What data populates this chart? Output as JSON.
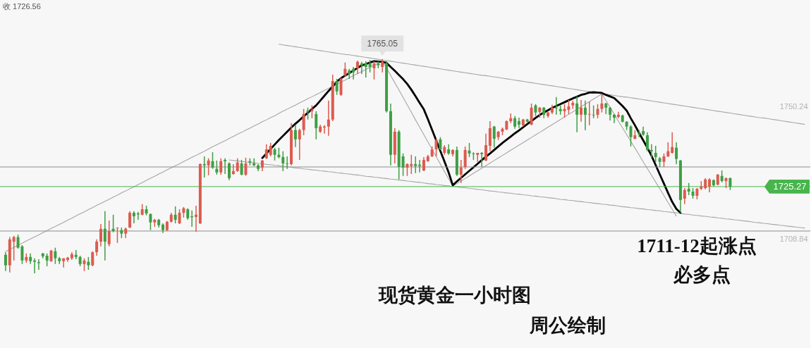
{
  "chart_data": {
    "type": "candlestick",
    "categories": [
      null,
      null,
      null,
      null,
      null,
      null,
      null,
      null,
      null,
      null,
      null,
      null,
      null,
      null,
      null,
      null,
      null,
      null,
      null,
      null,
      null,
      null,
      null,
      null,
      null,
      null,
      null,
      null,
      null,
      null,
      null,
      null,
      null,
      null,
      null,
      null,
      null,
      null,
      null,
      null,
      null,
      null,
      null,
      null,
      null,
      null,
      null,
      null,
      null,
      null,
      null,
      null,
      null,
      null,
      null,
      null,
      null,
      null,
      null,
      null,
      null,
      null,
      null,
      null,
      null,
      null,
      null,
      null,
      null,
      null,
      null,
      null,
      null,
      null,
      null,
      null,
      null,
      null,
      null,
      null,
      null,
      null,
      null,
      null,
      null,
      null,
      null,
      null,
      null,
      null,
      null,
      null,
      null,
      null,
      null,
      null,
      null,
      null,
      null,
      null,
      null,
      null,
      null,
      null,
      null,
      null,
      null,
      null,
      null,
      null,
      null,
      null,
      null,
      null,
      null,
      null,
      null,
      null,
      null,
      null,
      null,
      null,
      null,
      null,
      null,
      null,
      null,
      null,
      null,
      null,
      null,
      null,
      null,
      null,
      null,
      null,
      null,
      null,
      null,
      null,
      null,
      null,
      null,
      null,
      null,
      null,
      null,
      null,
      null,
      null,
      null,
      null,
      null,
      null,
      null,
      null,
      null,
      null,
      null,
      null,
      null,
      null,
      null,
      null,
      null,
      null,
      null,
      null,
      null,
      null,
      null,
      null,
      null,
      null,
      null,
      null,
      null,
      null,
      null,
      null,
      null,
      null,
      null,
      null,
      null,
      null,
      null,
      null,
      null,
      null,
      null,
      null,
      null,
      null
    ],
    "ohlc": [
      [
        1704.0,
        1704.8,
        1698.9,
        1700.7
      ],
      [
        1700.7,
        1709.5,
        1698.5,
        1708.8
      ],
      [
        1708.1,
        1709.9,
        1702.2,
        1709.5
      ],
      [
        1709.5,
        1710.3,
        1705.9,
        1706.2
      ],
      [
        1706.6,
        1707.0,
        1701.1,
        1702.2
      ],
      [
        1702.2,
        1704.4,
        1701.5,
        1703.3
      ],
      [
        1703.3,
        1704.4,
        1701.1,
        1702.0
      ],
      [
        1702.2,
        1702.9,
        1698.2,
        1701.8
      ],
      [
        1701.7,
        1702.6,
        1699.3,
        1701.4
      ],
      [
        1704.4,
        1704.6,
        1702.9,
        1703.5
      ],
      [
        1703.7,
        1704.4,
        1700.4,
        1702.2
      ],
      [
        1702.0,
        1705.5,
        1701.8,
        1705.3
      ],
      [
        1705.1,
        1706.2,
        1701.1,
        1702.9
      ],
      [
        1702.9,
        1703.3,
        1701.1,
        1702.0
      ],
      [
        1702.0,
        1702.9,
        1700.0,
        1702.9
      ],
      [
        1702.4,
        1703.3,
        1701.8,
        1703.1
      ],
      [
        1702.9,
        1704.8,
        1702.4,
        1704.2
      ],
      [
        1704.0,
        1705.5,
        1702.6,
        1703.3
      ],
      [
        1703.3,
        1703.7,
        1700.4,
        1701.1
      ],
      [
        1701.1,
        1702.9,
        1698.9,
        1702.2
      ],
      [
        1701.8,
        1703.3,
        1699.3,
        1700.7
      ],
      [
        1700.7,
        1705.1,
        1700.4,
        1704.8
      ],
      [
        1704.8,
        1708.8,
        1703.7,
        1708.1
      ],
      [
        1708.1,
        1713.6,
        1706.6,
        1712.1
      ],
      [
        1712.1,
        1717.6,
        1702.2,
        1708.1
      ],
      [
        1707.3,
        1714.7,
        1706.6,
        1711.4
      ],
      [
        1712.1,
        1716.5,
        1711.0,
        1711.4
      ],
      [
        1712.3,
        1712.5,
        1707.7,
        1712.5
      ],
      [
        1711.7,
        1712.5,
        1709.2,
        1710.6
      ],
      [
        1710.6,
        1712.5,
        1709.2,
        1712.1
      ],
      [
        1712.5,
        1717.6,
        1712.3,
        1717.1
      ],
      [
        1717.1,
        1717.6,
        1713.8,
        1716.0
      ],
      [
        1716.9,
        1717.4,
        1714.9,
        1716.6
      ],
      [
        1716.5,
        1719.8,
        1716.3,
        1718.2
      ],
      [
        1718.2,
        1719.3,
        1716.3,
        1716.9
      ],
      [
        1716.7,
        1716.9,
        1711.7,
        1714.1
      ],
      [
        1714.1,
        1715.2,
        1712.7,
        1714.9
      ],
      [
        1714.9,
        1715.2,
        1712.5,
        1713.2
      ],
      [
        1713.4,
        1713.8,
        1710.8,
        1711.7
      ],
      [
        1711.7,
        1714.5,
        1711.4,
        1714.3
      ],
      [
        1714.3,
        1717.1,
        1714.1,
        1716.5
      ],
      [
        1716.5,
        1719.1,
        1713.8,
        1714.9
      ],
      [
        1713.8,
        1718.2,
        1713.6,
        1717.1
      ],
      [
        1717.1,
        1718.9,
        1715.6,
        1718.5
      ],
      [
        1718.2,
        1718.5,
        1714.9,
        1715.4
      ],
      [
        1716.0,
        1717.8,
        1712.7,
        1715.7
      ],
      [
        1715.8,
        1719.3,
        1711.2,
        1716.5
      ],
      [
        1713.8,
        1732.5,
        1713.6,
        1732.3
      ],
      [
        1732.3,
        1734.7,
        1728.1,
        1731.9
      ],
      [
        1731.9,
        1734.1,
        1728.8,
        1733.4
      ],
      [
        1733.2,
        1736.0,
        1730.8,
        1731.2
      ],
      [
        1730.8,
        1733.4,
        1729.0,
        1729.7
      ],
      [
        1729.7,
        1734.1,
        1729.0,
        1733.2
      ],
      [
        1733.6,
        1734.1,
        1729.2,
        1733.2
      ],
      [
        1732.5,
        1732.8,
        1727.3,
        1727.9
      ],
      [
        1729.2,
        1732.3,
        1729.0,
        1730.1
      ],
      [
        1730.1,
        1734.1,
        1729.9,
        1732.8
      ],
      [
        1732.5,
        1733.6,
        1728.8,
        1729.0
      ],
      [
        1729.0,
        1734.3,
        1728.6,
        1732.5
      ],
      [
        1733.2,
        1734.1,
        1731.9,
        1732.8
      ],
      [
        1732.5,
        1734.1,
        1731.7,
        1731.9
      ],
      [
        1731.9,
        1732.3,
        1730.1,
        1730.8
      ],
      [
        1731.2,
        1733.6,
        1730.1,
        1733.4
      ],
      [
        1734.1,
        1738.5,
        1733.9,
        1736.9
      ],
      [
        1735.2,
        1738.9,
        1734.7,
        1738.0
      ],
      [
        1736.9,
        1737.4,
        1733.4,
        1735.2
      ],
      [
        1735.2,
        1737.4,
        1734.1,
        1734.5
      ],
      [
        1734.5,
        1736.3,
        1730.1,
        1732.5
      ],
      [
        1732.5,
        1734.7,
        1730.8,
        1732.3
      ],
      [
        1732.3,
        1745.1,
        1731.9,
        1742.9
      ],
      [
        1742.9,
        1744.6,
        1737.6,
        1740.0
      ],
      [
        1740.0,
        1743.3,
        1733.6,
        1742.9
      ],
      [
        1742.9,
        1749.5,
        1741.3,
        1747.9
      ],
      [
        1749.0,
        1749.9,
        1746.2,
        1748.6
      ],
      [
        1748.8,
        1750.6,
        1746.6,
        1749.2
      ],
      [
        1747.9,
        1748.8,
        1740.0,
        1743.5
      ],
      [
        1742.4,
        1744.6,
        1742.0,
        1744.0
      ],
      [
        1743.7,
        1744.4,
        1741.8,
        1744.0
      ],
      [
        1744.0,
        1752.1,
        1741.1,
        1746.2
      ],
      [
        1746.2,
        1760.2,
        1745.7,
        1758.2
      ],
      [
        1758.2,
        1758.9,
        1753.9,
        1755.0
      ],
      [
        1753.9,
        1759.3,
        1753.6,
        1758.9
      ],
      [
        1760.0,
        1764.0,
        1759.6,
        1762.0
      ],
      [
        1761.5,
        1762.0,
        1758.9,
        1760.4
      ],
      [
        1762.0,
        1762.6,
        1758.7,
        1760.9
      ],
      [
        1762.2,
        1764.6,
        1760.4,
        1764.2
      ],
      [
        1763.7,
        1764.2,
        1760.4,
        1763.1
      ],
      [
        1763.7,
        1764.4,
        1759.3,
        1762.6
      ],
      [
        1763.7,
        1764.8,
        1760.9,
        1762.6
      ],
      [
        1762.2,
        1764.4,
        1758.7,
        1763.7
      ],
      [
        1763.7,
        1764.4,
        1762.2,
        1763.1
      ],
      [
        1762.6,
        1765.05,
        1760.9,
        1764.2
      ],
      [
        1763.7,
        1764.4,
        1748.4,
        1748.8
      ],
      [
        1748.8,
        1751.2,
        1731.9,
        1735.2
      ],
      [
        1735.2,
        1743.5,
        1732.5,
        1742.4
      ],
      [
        1742.4,
        1742.9,
        1727.5,
        1731.4
      ],
      [
        1734.7,
        1735.6,
        1728.6,
        1731.2
      ],
      [
        1731.2,
        1732.5,
        1728.6,
        1732.3
      ],
      [
        1731.7,
        1735.2,
        1729.2,
        1732.3
      ],
      [
        1732.3,
        1734.7,
        1729.5,
        1731.7
      ],
      [
        1732.1,
        1733.6,
        1729.7,
        1731.7
      ],
      [
        1730.3,
        1734.5,
        1730.1,
        1733.6
      ],
      [
        1733.2,
        1735.2,
        1733.0,
        1734.7
      ],
      [
        1734.7,
        1737.8,
        1734.5,
        1736.9
      ],
      [
        1736.9,
        1740.2,
        1734.7,
        1739.8
      ],
      [
        1740.0,
        1740.7,
        1736.7,
        1736.9
      ],
      [
        1735.8,
        1738.2,
        1735.2,
        1737.6
      ],
      [
        1736.9,
        1738.5,
        1735.2,
        1735.6
      ],
      [
        1735.4,
        1736.9,
        1734.7,
        1736.7
      ],
      [
        1736.7,
        1737.8,
        1728.6,
        1729.0
      ],
      [
        1729.0,
        1733.6,
        1726.4,
        1731.2
      ],
      [
        1731.4,
        1737.8,
        1730.8,
        1736.7
      ],
      [
        1736.5,
        1738.9,
        1734.5,
        1735.6
      ],
      [
        1735.6,
        1736.0,
        1733.6,
        1735.4
      ],
      [
        1735.2,
        1735.8,
        1733.0,
        1735.8
      ],
      [
        1735.8,
        1736.0,
        1731.4,
        1735.4
      ],
      [
        1733.4,
        1741.8,
        1733.2,
        1738.2
      ],
      [
        1738.0,
        1745.7,
        1736.3,
        1743.5
      ],
      [
        1744.0,
        1744.2,
        1737.4,
        1740.2
      ],
      [
        1740.7,
        1742.6,
        1739.8,
        1742.4
      ],
      [
        1742.4,
        1743.7,
        1741.3,
        1743.3
      ],
      [
        1743.1,
        1745.9,
        1742.9,
        1745.7
      ],
      [
        1745.7,
        1748.1,
        1745.1,
        1746.6
      ],
      [
        1746.6,
        1747.3,
        1743.3,
        1744.0
      ],
      [
        1745.7,
        1746.8,
        1743.5,
        1744.6
      ],
      [
        1744.4,
        1746.4,
        1744.0,
        1746.2
      ],
      [
        1746.2,
        1746.4,
        1745.3,
        1745.5
      ],
      [
        1744.6,
        1751.2,
        1744.4,
        1749.9
      ],
      [
        1750.6,
        1751.0,
        1747.3,
        1748.4
      ],
      [
        1748.6,
        1750.1,
        1746.8,
        1749.9
      ],
      [
        1749.9,
        1750.1,
        1746.6,
        1747.7
      ],
      [
        1747.3,
        1748.6,
        1746.8,
        1748.4
      ],
      [
        1748.4,
        1750.8,
        1747.9,
        1749.9
      ],
      [
        1749.9,
        1753.2,
        1747.7,
        1749.7
      ],
      [
        1749.5,
        1750.6,
        1747.7,
        1748.8
      ],
      [
        1748.8,
        1751.0,
        1746.8,
        1749.5
      ],
      [
        1749.2,
        1752.3,
        1747.9,
        1750.3
      ],
      [
        1750.6,
        1752.1,
        1749.5,
        1751.4
      ],
      [
        1751.2,
        1753.4,
        1742.2,
        1747.7
      ],
      [
        1747.7,
        1752.3,
        1745.5,
        1749.9
      ],
      [
        1749.9,
        1752.1,
        1742.9,
        1747.7
      ],
      [
        1747.7,
        1751.8,
        1744.4,
        1747.9
      ],
      [
        1747.7,
        1750.6,
        1746.6,
        1747.5
      ],
      [
        1747.7,
        1751.0,
        1746.6,
        1749.5
      ],
      [
        1749.5,
        1754.3,
        1748.4,
        1751.2
      ],
      [
        1751.2,
        1751.4,
        1747.9,
        1749.9
      ],
      [
        1749.9,
        1750.1,
        1745.9,
        1747.7
      ],
      [
        1747.7,
        1747.9,
        1745.1,
        1746.8
      ],
      [
        1747.0,
        1748.6,
        1746.6,
        1747.7
      ],
      [
        1747.5,
        1747.7,
        1745.3,
        1745.5
      ],
      [
        1745.5,
        1745.7,
        1742.9,
        1744.0
      ],
      [
        1744.0,
        1744.4,
        1737.8,
        1740.7
      ],
      [
        1740.2,
        1742.9,
        1740.0,
        1741.3
      ],
      [
        1741.8,
        1742.9,
        1740.7,
        1741.5
      ],
      [
        1742.6,
        1744.0,
        1741.1,
        1741.5
      ],
      [
        1741.3,
        1742.2,
        1736.3,
        1736.7
      ],
      [
        1736.7,
        1738.5,
        1734.1,
        1736.3
      ],
      [
        1735.8,
        1738.0,
        1733.0,
        1734.5
      ],
      [
        1734.1,
        1734.5,
        1731.4,
        1733.0
      ],
      [
        1733.0,
        1735.6,
        1731.4,
        1734.7
      ],
      [
        1734.7,
        1739.1,
        1734.5,
        1736.3
      ],
      [
        1735.8,
        1742.2,
        1735.6,
        1737.6
      ],
      [
        1737.4,
        1739.1,
        1732.3,
        1733.9
      ],
      [
        1733.4,
        1733.6,
        1717.1,
        1721.1
      ],
      [
        1721.5,
        1724.8,
        1719.8,
        1724.2
      ],
      [
        1724.6,
        1726.4,
        1722.6,
        1723.7
      ],
      [
        1723.7,
        1724.8,
        1721.5,
        1722.4
      ],
      [
        1722.4,
        1724.8,
        1721.3,
        1724.6
      ],
      [
        1724.6,
        1727.0,
        1724.2,
        1725.3
      ],
      [
        1724.8,
        1727.9,
        1724.4,
        1727.5
      ],
      [
        1725.3,
        1727.9,
        1723.5,
        1727.5
      ],
      [
        1727.3,
        1727.5,
        1725.3,
        1725.7
      ],
      [
        1725.9,
        1729.2,
        1725.7,
        1729.0
      ],
      [
        1728.6,
        1730.3,
        1726.6,
        1727.0
      ],
      [
        1727.0,
        1728.1,
        1724.8,
        1727.9
      ],
      [
        1727.9,
        1728.1,
        1724.2,
        1725.27
      ],
      null,
      null,
      null,
      null,
      null,
      null,
      null,
      null,
      null,
      null,
      null,
      null,
      null,
      null,
      null,
      null,
      null,
      null
    ],
    "colors": [
      "#3e9f43",
      "#dc5b4f",
      "#dc5b4f",
      "#3e9f43",
      "#3e9f43",
      "#dc5b4f",
      "#3e9f43",
      "#3e9f43",
      "#3e9f43",
      "#3e9f43",
      "#3e9f43",
      "#dc5b4f",
      "#3e9f43",
      "#3e9f43",
      "#dc5b4f",
      "#dc5b4f",
      "#dc5b4f",
      "#3e9f43",
      "#3e9f43",
      "#dc5b4f",
      "#3e9f43",
      "#dc5b4f",
      "#dc5b4f",
      "#dc5b4f",
      "#3e9f43",
      "#dc5b4f",
      "#3e9f43",
      "#dc5b4f",
      "#3e9f43",
      "#dc5b4f",
      "#dc5b4f",
      "#3e9f43",
      "#3e9f43",
      "#dc5b4f",
      "#3e9f43",
      "#3e9f43",
      "#dc5b4f",
      "#3e9f43",
      "#3e9f43",
      "#dc5b4f",
      "#dc5b4f",
      "#3e9f43",
      "#dc5b4f",
      "#dc5b4f",
      "#3e9f43",
      "#3e9f43",
      "#dc5b4f",
      "#dc5b4f",
      "#3e9f43",
      "#dc5b4f",
      "#3e9f43",
      "#3e9f43",
      "#dc5b4f",
      "#3e9f43",
      "#3e9f43",
      "#dc5b4f",
      "#dc5b4f",
      "#3e9f43",
      "#dc5b4f",
      "#3e9f43",
      "#3e9f43",
      "#3e9f43",
      "#dc5b4f",
      "#dc5b4f",
      "#dc5b4f",
      "#3e9f43",
      "#3e9f43",
      "#3e9f43",
      "#3e9f43",
      "#dc5b4f",
      "#3e9f43",
      "#dc5b4f",
      "#dc5b4f",
      "#3e9f43",
      "#dc5b4f",
      "#3e9f43",
      "#dc5b4f",
      "#dc5b4f",
      "#dc5b4f",
      "#dc5b4f",
      "#3e9f43",
      "#dc5b4f",
      "#dc5b4f",
      "#3e9f43",
      "#3e9f43",
      "#dc5b4f",
      "#3e9f43",
      "#3e9f43",
      "#3e9f43",
      "#dc5b4f",
      "#3e9f43",
      "#dc5b4f",
      "#3e9f43",
      "#3e9f43",
      "#dc5b4f",
      "#3e9f43",
      "#3e9f43",
      "#dc5b4f",
      "#dc5b4f",
      "#3e9f43",
      "#3e9f43",
      "#dc5b4f",
      "#dc5b4f",
      "#dc5b4f",
      "#dc5b4f",
      "#3e9f43",
      "#dc5b4f",
      "#3e9f43",
      "#dc5b4f",
      "#3e9f43",
      "#dc5b4f",
      "#dc5b4f",
      "#3e9f43",
      "#3e9f43",
      "#dc5b4f",
      "#3e9f43",
      "#dc5b4f",
      "#dc5b4f",
      "#3e9f43",
      "#dc5b4f",
      "#dc5b4f",
      "#dc5b4f",
      "#dc5b4f",
      "#3e9f43",
      "#3e9f43",
      "#dc5b4f",
      "#3e9f43",
      "#dc5b4f",
      "#3e9f43",
      "#dc5b4f",
      "#3e9f43",
      "#dc5b4f",
      "#dc5b4f",
      "#3e9f43",
      "#3e9f43",
      "#dc5b4f",
      "#dc5b4f",
      "#dc5b4f",
      "#3e9f43",
      "#dc5b4f",
      "#3e9f43",
      "#dc5b4f",
      "#3e9f43",
      "#dc5b4f",
      "#dc5b4f",
      "#3e9f43",
      "#3e9f43",
      "#3e9f43",
      "#dc5b4f",
      "#3e9f43",
      "#3e9f43",
      "#3e9f43",
      "#dc5b4f",
      "#3e9f43",
      "#3e9f43",
      "#3e9f43",
      "#3e9f43",
      "#3e9f43",
      "#3e9f43",
      "#dc5b4f",
      "#dc5b4f",
      "#dc5b4f",
      "#3e9f43",
      "#3e9f43",
      "#dc5b4f",
      "#3e9f43",
      "#3e9f43",
      "#dc5b4f",
      "#dc5b4f",
      "#dc5b4f",
      "#dc5b4f",
      "#3e9f43",
      "#dc5b4f",
      "#3e9f43",
      "#dc5b4f",
      "#3e9f43",
      null,
      null,
      null,
      null,
      null,
      null,
      null,
      null,
      null,
      null,
      null,
      null,
      null,
      null,
      null,
      null,
      null,
      null
    ],
    "series": [
      {
        "type": "line",
        "color": "#a6a6a6",
        "values": [
          1705.0,
          1705.7,
          1706.3,
          1707.0,
          1707.6,
          1708.3,
          1708.9,
          1709.6,
          1710.2,
          1710.9,
          1711.5,
          1712.2,
          1712.8,
          1713.5,
          1714.1,
          1714.8,
          1715.4,
          1716.1,
          1716.8,
          1717.4,
          1718.1,
          1718.7,
          1719.4,
          1720.0,
          1720.7,
          1721.3,
          1722.0,
          1722.6,
          1723.3,
          1723.9,
          1724.6,
          1725.2,
          1725.9,
          1726.5,
          1727.2,
          1727.9,
          1728.5,
          1729.2,
          1729.8,
          1730.5,
          1731.1,
          1731.8,
          1732.4,
          1733.1,
          1733.7,
          1734.4,
          1735.0,
          1735.7,
          1736.3,
          1737.0,
          1737.7,
          1738.3,
          1739.0,
          1739.6,
          1740.3,
          1740.9,
          1741.6,
          1742.2,
          1742.9,
          1743.5,
          1744.2,
          1744.8,
          1745.5,
          1746.1,
          1746.8,
          1747.4,
          1748.1,
          1748.8,
          1749.4,
          1750.1,
          1750.7,
          1751.4,
          1752.0,
          1752.7,
          1753.3,
          1754.0,
          1754.6,
          1755.3,
          1755.9,
          1756.6,
          1757.2,
          1757.9,
          1758.5,
          1759.2,
          1759.9,
          1760.5,
          1761.2,
          1761.8,
          1762.5,
          1763.1,
          1763.8,
          1764.5,
          1762.3,
          1760.0,
          1757.7,
          1755.4,
          1753.1,
          1750.8,
          1748.5,
          1746.1,
          1743.8,
          1741.5,
          1739.2,
          1736.9,
          1734.6,
          1732.3,
          1730.0,
          1727.7,
          1725.4,
          1726.2,
          1727.0,
          1727.8,
          1728.6,
          1729.4,
          1730.2,
          1731.0,
          1731.8,
          1732.6,
          1733.4,
          1734.2,
          1735.0,
          1735.8,
          1736.6,
          1737.4,
          1738.2,
          1739.0,
          1739.8,
          1740.6,
          1741.4,
          1742.2,
          1743.0,
          1743.8,
          1744.6,
          1745.4,
          1746.2,
          1747.0,
          1747.8,
          1748.6,
          1749.4,
          1750.2,
          1751.0,
          1751.8,
          1752.6,
          1753.4,
          1754.2,
          1752.1,
          1750.0,
          1747.9,
          1745.7,
          1743.6,
          1741.5,
          1739.4,
          1737.3,
          1735.2,
          1733.0,
          1730.9,
          1728.8,
          1726.7,
          1724.6,
          1722.5,
          1720.3,
          1718.2,
          1716.1,
          null,
          null,
          null,
          null,
          null,
          null,
          null,
          null,
          null,
          null,
          null,
          null,
          null,
          null,
          null,
          null,
          null,
          null,
          null,
          null,
          null,
          null,
          null,
          null,
          null,
          null,
          null,
          null,
          null,
          null,
          null
        ]
      },
      {
        "type": "line",
        "color": "#a6a6a6",
        "values": [
          null,
          null,
          null,
          null,
          null,
          null,
          null,
          null,
          null,
          null,
          null,
          null,
          null,
          null,
          null,
          null,
          null,
          null,
          null,
          null,
          null,
          null,
          null,
          null,
          null,
          null,
          null,
          null,
          null,
          null,
          null,
          null,
          null,
          null,
          null,
          null,
          null,
          null,
          null,
          null,
          null,
          null,
          null,
          null,
          null,
          null,
          null,
          null,
          null,
          null,
          null,
          null,
          null,
          null,
          null,
          null,
          null,
          null,
          null,
          null,
          null,
          null,
          null,
          null,
          null,
          null,
          1769.7,
          1769.5,
          1769.3,
          1769.1,
          1768.9,
          1768.7,
          1768.5,
          1768.3,
          1768.1,
          1767.9,
          1767.7,
          1767.5,
          1767.3,
          1767.1,
          1766.9,
          1766.7,
          1766.5,
          1766.4,
          1766.2,
          1766.0,
          1765.8,
          1765.6,
          1765.4,
          1765.2,
          1765.0,
          1764.8,
          1764.6,
          1764.4,
          1764.2,
          1764.0,
          1763.8,
          1763.6,
          1763.4,
          1763.2,
          1763.0,
          1762.8,
          1762.6,
          1762.4,
          1762.2,
          1762.0,
          1761.8,
          1761.6,
          1761.4,
          1761.2,
          1761.0,
          1760.8,
          1760.6,
          1760.4,
          1760.2,
          1760.0,
          1759.9,
          1759.7,
          1759.5,
          1759.3,
          1759.1,
          1758.9,
          1758.7,
          1758.5,
          1758.3,
          1758.1,
          1757.9,
          1757.7,
          1757.5,
          1757.3,
          1757.1,
          1756.9,
          1756.7,
          1756.5,
          1756.3,
          1756.1,
          1755.9,
          1755.7,
          1755.5,
          1755.3,
          1755.1,
          1754.9,
          1754.7,
          1754.5,
          1754.3,
          1754.1,
          1753.9,
          1753.7,
          1753.5,
          1753.3,
          1753.2,
          1753.0,
          1752.8,
          1752.6,
          1752.4,
          1752.2,
          1752.0,
          1751.8,
          1751.6,
          1751.4,
          1751.2,
          1751.0,
          1750.8,
          1750.6,
          1750.4,
          1750.2,
          1750.0,
          1749.8,
          1749.6,
          1749.4,
          1749.2,
          1749.0,
          1748.8,
          1748.6,
          1748.4,
          1748.2,
          1748.0,
          1747.8,
          1747.6,
          1747.4,
          1747.2,
          1747.0,
          1746.8,
          1746.7,
          1746.5,
          1746.3,
          1746.1,
          1745.9,
          1745.7,
          1745.5,
          1745.3,
          1745.1,
          1744.9,
          1744.7
        ]
      },
      {
        "type": "line",
        "color": "#a6a6a6",
        "values": [
          null,
          null,
          null,
          null,
          null,
          null,
          null,
          null,
          null,
          null,
          null,
          null,
          null,
          null,
          null,
          null,
          null,
          null,
          null,
          null,
          null,
          null,
          null,
          null,
          null,
          null,
          null,
          null,
          null,
          null,
          null,
          null,
          null,
          null,
          null,
          null,
          null,
          null,
          null,
          null,
          null,
          null,
          null,
          null,
          null,
          null,
          null,
          null,
          null,
          null,
          null,
          null,
          null,
          null,
          1733.6,
          1733.4,
          1733.3,
          1733.1,
          1733.0,
          1732.8,
          1732.7,
          1732.5,
          1732.4,
          1732.2,
          1732.1,
          1731.9,
          1731.8,
          1731.6,
          1731.5,
          1731.3,
          1731.1,
          1731.0,
          1730.8,
          1730.7,
          1730.5,
          1730.4,
          1730.2,
          1730.1,
          1729.9,
          1729.8,
          1729.6,
          1729.5,
          1729.3,
          1729.2,
          1729.0,
          1728.9,
          1728.7,
          1728.5,
          1728.4,
          1728.2,
          1728.1,
          1727.9,
          1727.8,
          1727.6,
          1727.5,
          1727.3,
          1727.2,
          1727.0,
          1726.9,
          1726.7,
          1726.6,
          1726.4,
          1726.2,
          1726.1,
          1725.9,
          1725.8,
          1725.6,
          1725.5,
          1725.3,
          1725.2,
          1725.0,
          1724.9,
          1724.7,
          1724.6,
          1724.4,
          1724.3,
          1724.1,
          1723.9,
          1723.8,
          1723.6,
          1723.5,
          1723.3,
          1723.2,
          1723.0,
          1722.9,
          1722.7,
          1722.6,
          1722.4,
          1722.3,
          1722.1,
          1722.0,
          1721.8,
          1721.7,
          1721.5,
          1721.3,
          1721.2,
          1721.0,
          1720.9,
          1720.7,
          1720.6,
          1720.4,
          1720.3,
          1720.1,
          1720.0,
          1719.8,
          1719.7,
          1719.5,
          1719.4,
          1719.2,
          1719.0,
          1718.9,
          1718.7,
          1718.6,
          1718.4,
          1718.3,
          1718.1,
          1718.0,
          1717.8,
          1717.7,
          1717.5,
          1717.4,
          1717.2,
          1717.1,
          1716.9,
          1716.7,
          1716.6,
          1716.4,
          1716.3,
          1716.1,
          1716.0,
          1715.8,
          1715.7,
          1715.5,
          1715.4,
          1715.2,
          1715.1,
          1714.9,
          1714.8,
          1714.6,
          1714.5,
          1714.3,
          1714.1,
          1714.0,
          1713.8,
          1713.7,
          1713.5,
          1713.4,
          1713.2,
          1713.1,
          1712.9,
          1712.8,
          1712.6,
          1712.5,
          1712.3
        ]
      },
      {
        "type": "line",
        "color": "#000000",
        "values": [
          null,
          null,
          null,
          null,
          null,
          null,
          null,
          null,
          null,
          null,
          null,
          null,
          null,
          null,
          null,
          null,
          null,
          null,
          null,
          null,
          null,
          null,
          null,
          null,
          null,
          null,
          null,
          null,
          null,
          null,
          null,
          null,
          null,
          null,
          null,
          null,
          null,
          null,
          null,
          null,
          null,
          null,
          null,
          null,
          null,
          null,
          null,
          null,
          null,
          null,
          null,
          null,
          null,
          null,
          null,
          null,
          null,
          null,
          null,
          null,
          null,
          null,
          1734.2,
          1735.6,
          1737.0,
          1738.4,
          1739.8,
          1741.1,
          1742.4,
          1743.7,
          1744.9,
          1746.0,
          1747.2,
          1748.3,
          1749.5,
          1750.6,
          1752.1,
          1753.6,
          1755.1,
          1756.5,
          1758.0,
          1759.1,
          1759.9,
          1760.7,
          1761.5,
          1762.3,
          1763.1,
          1763.5,
          1764.0,
          1764.4,
          1764.3,
          1764.2,
          1763.9,
          1762.6,
          1761.4,
          1760.1,
          1758.8,
          1757.3,
          1755.5,
          1753.5,
          1751.4,
          1749.4,
          1746.3,
          1743.0,
          1739.7,
          1736.4,
          1733.1,
          1729.7,
          1725.7,
          1726.9,
          1728.0,
          1729.1,
          1730.2,
          1731.3,
          1732.4,
          1733.5,
          1734.6,
          1735.6,
          1736.7,
          1737.8,
          1738.9,
          1739.9,
          1740.9,
          1741.9,
          1742.8,
          1743.8,
          1744.8,
          1745.7,
          1746.7,
          1747.6,
          1748.4,
          1749.1,
          1749.8,
          1750.4,
          1751.0,
          1751.6,
          1752.2,
          1752.8,
          1753.3,
          1753.9,
          1754.2,
          1754.6,
          1754.7,
          1754.6,
          1754.5,
          1753.9,
          1753.4,
          1752.9,
          1751.7,
          1750.4,
          1749.0,
          1746.6,
          1744.4,
          1742.0,
          1739.7,
          1737.4,
          1734.9,
          1732.0,
          1729.1,
          1726.2,
          1723.3,
          1720.5,
          1718.3,
          1717.1,
          null,
          null,
          null,
          null,
          null,
          null,
          null,
          null,
          null,
          null,
          null,
          null,
          null,
          null,
          null,
          null,
          null,
          null,
          null,
          null,
          null,
          null,
          null,
          null,
          null,
          null,
          null,
          null,
          null,
          null
        ]
      }
    ],
    "ylim": [
      1674.9,
      1783.5
    ],
    "yticks": [
      1750.24,
      1708.84
    ],
    "tick_labels": "y",
    "ref_lines": [
      {
        "axis": "y",
        "value": 1731.4,
        "color": "#8c8c8c"
      },
      {
        "axis": "y",
        "value": 1711.4,
        "color": "#8c8c8c"
      },
      {
        "axis": "y",
        "value": 1725.27,
        "label": "1725.27",
        "color": "#47b54c"
      }
    ],
    "annotations": [
      "收 1726.56",
      {
        "text": "1765.05",
        "y": 1765.05
      },
      "1711-12起涨点",
      "必多点",
      "现货黄金一小时图",
      "周公绘制"
    ]
  }
}
